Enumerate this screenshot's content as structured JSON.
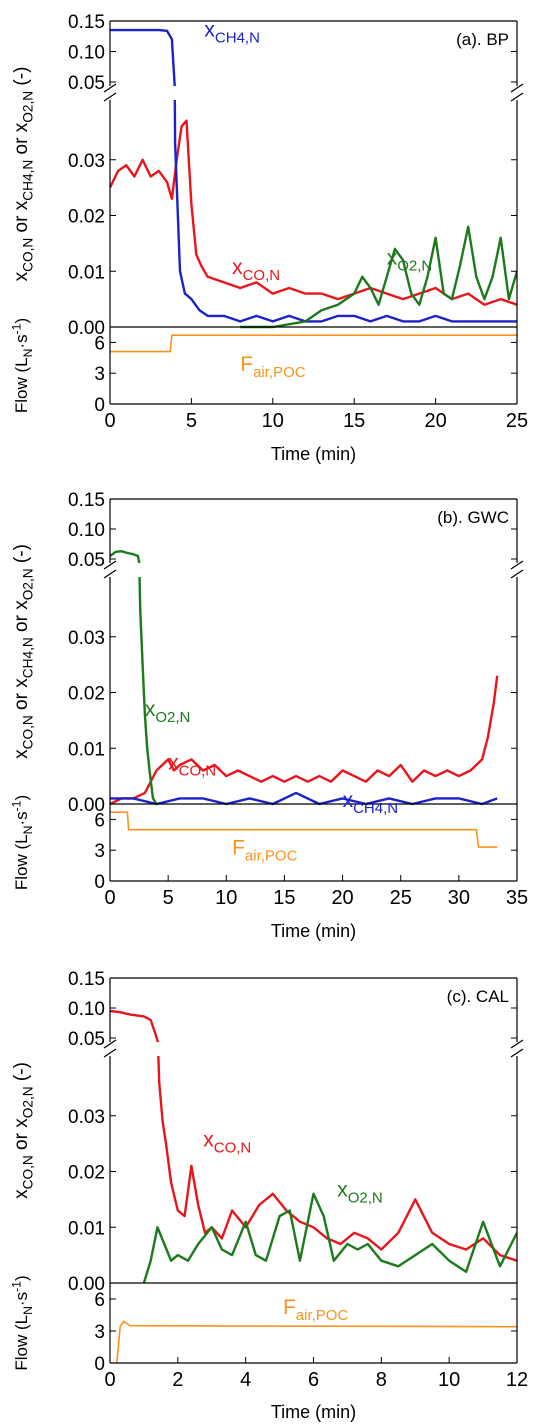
{
  "colors": {
    "co": "#e8151b",
    "ch4": "#1a22c8",
    "o2": "#1c7a1c",
    "flow": "#f7941d",
    "axis": "#000000"
  },
  "chart_data": [
    {
      "type": "line",
      "panel_label": "(a). BP",
      "ylabel": [
        "x",
        "CO,N",
        " or x",
        "CH4,N",
        " or x",
        "O2,N",
        " (-)"
      ],
      "flow_ylabel": [
        "Flow (L",
        "N",
        "·s",
        "-1",
        ")"
      ],
      "xlabel": "Time (min)",
      "xlim": [
        0,
        25
      ],
      "xticks": [
        "0",
        "5",
        "10",
        "15",
        "20",
        "25"
      ],
      "ylim_upper": [
        0.05,
        0.15
      ],
      "yticks_upper": [
        "0.05",
        "0.10",
        "0.15"
      ],
      "ylim_lower": [
        0,
        0.04
      ],
      "yticks_lower": [
        "0.00",
        "0.01",
        "0.02",
        "0.03"
      ],
      "flow_ylim": [
        0,
        7.5
      ],
      "flow_yticks": [
        "0",
        "3",
        "6"
      ],
      "series": [
        {
          "key": "co",
          "label": "x",
          "sub": "CO,N",
          "x": [
            0,
            0.5,
            1,
            1.5,
            2,
            2.5,
            3,
            3.5,
            3.8,
            4.1,
            4.4,
            4.7,
            5,
            5.3,
            5.6,
            6,
            7,
            8,
            9,
            10,
            11,
            12,
            13,
            14,
            15,
            16,
            17,
            18,
            19,
            20,
            21,
            22,
            23,
            24,
            25
          ],
          "y": [
            0.025,
            0.028,
            0.029,
            0.027,
            0.03,
            0.027,
            0.028,
            0.026,
            0.023,
            0.03,
            0.036,
            0.037,
            0.022,
            0.013,
            0.011,
            0.009,
            0.008,
            0.007,
            0.008,
            0.006,
            0.007,
            0.006,
            0.006,
            0.005,
            0.006,
            0.007,
            0.006,
            0.005,
            0.006,
            0.007,
            0.005,
            0.006,
            0.004,
            0.005,
            0.004
          ]
        },
        {
          "key": "ch4",
          "label": "x",
          "sub": "CH4,N",
          "x": [
            0,
            1,
            2,
            3,
            3.5,
            3.8,
            4,
            4.3,
            4.6,
            5,
            5.5,
            6,
            7,
            8,
            9,
            10,
            11,
            12,
            13,
            14,
            15,
            16,
            17,
            18,
            19,
            20,
            21,
            22,
            23,
            24,
            25
          ],
          "y": [
            0.135,
            0.135,
            0.135,
            0.135,
            0.134,
            0.12,
            0.033,
            0.01,
            0.006,
            0.005,
            0.003,
            0.002,
            0.002,
            0.001,
            0.002,
            0.001,
            0.002,
            0.001,
            0.001,
            0.002,
            0.002,
            0.001,
            0.002,
            0.001,
            0.001,
            0.002,
            0.001,
            0.001,
            0.001,
            0.001,
            0.001
          ]
        },
        {
          "key": "o2",
          "label": "x",
          "sub": "O2,N",
          "x": [
            8,
            10,
            12,
            13,
            14,
            15,
            15.5,
            16,
            16.5,
            17,
            17.5,
            18,
            18.5,
            19,
            19.5,
            20,
            20.5,
            21,
            21.5,
            22,
            22.5,
            23,
            23.5,
            24,
            24.5,
            25
          ],
          "y": [
            0,
            0,
            0.001,
            0.003,
            0.004,
            0.006,
            0.009,
            0.007,
            0.004,
            0.009,
            0.014,
            0.012,
            0.006,
            0.004,
            0.009,
            0.016,
            0.006,
            0.005,
            0.011,
            0.018,
            0.009,
            0.005,
            0.009,
            0.016,
            0.005,
            0.01
          ]
        }
      ],
      "flow": {
        "label": "F",
        "sub": "air,POC",
        "x": [
          0,
          3.7,
          3.8,
          25
        ],
        "y": [
          5.1,
          5.1,
          6.7,
          6.7
        ]
      },
      "labels": [
        {
          "key": "ch4",
          "at": [
            5.8,
            0.125
          ]
        },
        {
          "key": "co",
          "at": [
            7.5,
            0.0095
          ]
        },
        {
          "key": "o2",
          "at": [
            17,
            0.0112
          ]
        }
      ],
      "flow_label_at": [
        8,
        3.2
      ]
    },
    {
      "type": "line",
      "panel_label": "(b). GWC",
      "ylabel": [
        "x",
        "CO,N",
        " or x",
        "CH4,N",
        " or x",
        "O2,N",
        " (-)"
      ],
      "flow_ylabel": [
        "Flow (L",
        "N",
        "·s",
        "-1",
        ")"
      ],
      "xlabel": "Time (min)",
      "xlim": [
        0,
        35
      ],
      "xticks": [
        "0",
        "5",
        "10",
        "15",
        "20",
        "25",
        "30",
        "35"
      ],
      "ylim_upper": [
        0.05,
        0.15
      ],
      "yticks_upper": [
        "0.05",
        "0.10",
        "0.15"
      ],
      "ylim_lower": [
        0,
        0.04
      ],
      "yticks_lower": [
        "0.00",
        "0.01",
        "0.02",
        "0.03"
      ],
      "flow_ylim": [
        0,
        7.5
      ],
      "flow_yticks": [
        "0",
        "3",
        "6"
      ],
      "series": [
        {
          "key": "co",
          "label": "x",
          "sub": "CO,N",
          "x": [
            0,
            1,
            2,
            3,
            3.5,
            4,
            4.5,
            5,
            5.5,
            6,
            7,
            8,
            9,
            10,
            11,
            12,
            13,
            14,
            15,
            16,
            17,
            18,
            19,
            20,
            21,
            22,
            23,
            24,
            25,
            26,
            27,
            28,
            29,
            30,
            31,
            32,
            32.5,
            33,
            33.3
          ],
          "y": [
            0,
            0.001,
            0.001,
            0.002,
            0.004,
            0.006,
            0.007,
            0.008,
            0.006,
            0.007,
            0.008,
            0.006,
            0.007,
            0.005,
            0.006,
            0.005,
            0.004,
            0.005,
            0.004,
            0.005,
            0.004,
            0.005,
            0.004,
            0.006,
            0.005,
            0.004,
            0.006,
            0.005,
            0.007,
            0.004,
            0.006,
            0.005,
            0.006,
            0.005,
            0.006,
            0.008,
            0.012,
            0.018,
            0.023
          ]
        },
        {
          "key": "ch4",
          "label": "x",
          "sub": "CH4,N",
          "x": [
            0,
            2,
            4,
            6,
            8,
            10,
            12,
            14,
            16,
            18,
            20,
            22,
            24,
            26,
            28,
            30,
            32,
            33.3
          ],
          "y": [
            0.001,
            0.001,
            0,
            0.001,
            0.001,
            0,
            0.001,
            0,
            0.002,
            0,
            0.001,
            0,
            0.001,
            0,
            0.001,
            0.001,
            0,
            0.001
          ]
        },
        {
          "key": "o2",
          "label": "x",
          "sub": "O2,N",
          "x": [
            0,
            0.5,
            1,
            1.5,
            2,
            2.4,
            2.6,
            2.8,
            3,
            3.2,
            3.4,
            3.7,
            4
          ],
          "y": [
            0.055,
            0.062,
            0.063,
            0.06,
            0.058,
            0.055,
            0.035,
            0.025,
            0.016,
            0.01,
            0.006,
            0.001,
            0
          ]
        }
      ],
      "flow": {
        "label": "F",
        "sub": "air,POC",
        "x": [
          0,
          1.5,
          1.6,
          31.5,
          31.7,
          33.3
        ],
        "y": [
          6.7,
          6.7,
          5.0,
          5.0,
          3.3,
          3.3
        ]
      },
      "labels": [
        {
          "key": "o2",
          "at": [
            3,
            0.0158
          ]
        },
        {
          "key": "co",
          "at": [
            5,
            0.0062
          ]
        },
        {
          "key": "ch4",
          "at": [
            20,
            -0.0005
          ]
        }
      ],
      "flow_label_at": [
        10.5,
        2.6
      ]
    },
    {
      "type": "line",
      "panel_label": "(c). CAL",
      "ylabel": [
        "x",
        "CO,N",
        " or x",
        "O2,N",
        " (-)"
      ],
      "flow_ylabel": [
        "Flow (L",
        "N",
        "·s",
        "-1",
        ")"
      ],
      "xlabel": "Time (min)",
      "xlim": [
        0,
        12
      ],
      "xticks": [
        "0",
        "2",
        "4",
        "6",
        "8",
        "10",
        "12"
      ],
      "ylim_upper": [
        0.05,
        0.15
      ],
      "yticks_upper": [
        "0.05",
        "0.10",
        "0.15"
      ],
      "ylim_lower": [
        0,
        0.04
      ],
      "yticks_lower": [
        "0.00",
        "0.01",
        "0.02",
        "0.03"
      ],
      "flow_ylim": [
        0,
        7.5
      ],
      "flow_yticks": [
        "0",
        "3",
        "6"
      ],
      "series": [
        {
          "key": "co",
          "label": "x",
          "sub": "CO,N",
          "x": [
            0,
            0.3,
            0.6,
            1,
            1.2,
            1.35,
            1.45,
            1.55,
            1.65,
            1.8,
            2,
            2.2,
            2.4,
            2.6,
            2.8,
            3,
            3.3,
            3.6,
            4,
            4.4,
            4.8,
            5.2,
            5.6,
            6,
            6.4,
            6.8,
            7.2,
            7.6,
            8,
            8.5,
            9,
            9.5,
            10,
            10.5,
            11,
            11.5,
            12
          ],
          "y": [
            0.095,
            0.093,
            0.089,
            0.086,
            0.08,
            0.055,
            0.036,
            0.029,
            0.025,
            0.018,
            0.013,
            0.012,
            0.021,
            0.014,
            0.009,
            0.01,
            0.008,
            0.013,
            0.01,
            0.014,
            0.016,
            0.013,
            0.011,
            0.01,
            0.008,
            0.007,
            0.009,
            0.008,
            0.006,
            0.009,
            0.015,
            0.009,
            0.007,
            0.006,
            0.008,
            0.005,
            0.004
          ]
        },
        {
          "key": "o2",
          "label": "x",
          "sub": "O2,N",
          "x": [
            1,
            1.2,
            1.4,
            1.6,
            1.8,
            2,
            2.3,
            2.6,
            3,
            3.3,
            3.6,
            4,
            4.3,
            4.6,
            5,
            5.3,
            5.6,
            6,
            6.3,
            6.6,
            7,
            7.3,
            7.6,
            8,
            8.5,
            9,
            9.5,
            10,
            10.5,
            11,
            11.5,
            12
          ],
          "y": [
            0,
            0.004,
            0.01,
            0.007,
            0.004,
            0.005,
            0.004,
            0.007,
            0.01,
            0.006,
            0.005,
            0.011,
            0.005,
            0.004,
            0.012,
            0.013,
            0.004,
            0.016,
            0.012,
            0.004,
            0.007,
            0.006,
            0.007,
            0.004,
            0.003,
            0.005,
            0.007,
            0.004,
            0.002,
            0.011,
            0.003,
            0.009
          ]
        }
      ],
      "flow": {
        "label": "F",
        "sub": "air,POC",
        "x": [
          0.2,
          0.3,
          0.4,
          0.6,
          12
        ],
        "y": [
          0,
          3.4,
          3.9,
          3.5,
          3.4
        ]
      },
      "labels": [
        {
          "key": "co",
          "at": [
            2.75,
            0.0245
          ]
        },
        {
          "key": "o2",
          "at": [
            6.7,
            0.0155
          ]
        }
      ],
      "flow_label_at": [
        5.1,
        4.6
      ]
    }
  ]
}
